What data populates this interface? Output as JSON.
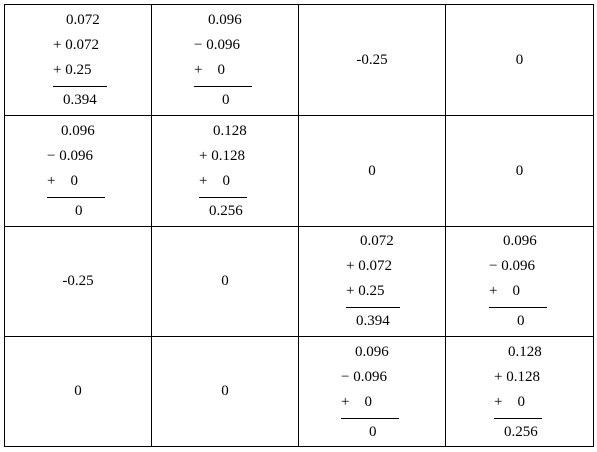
{
  "rows": [
    [
      {
        "type": "sum",
        "lines": [
          "0.072",
          "+ 0.072",
          "+ 0.25"
        ],
        "result": "0.394"
      },
      {
        "type": "sum",
        "lines": [
          "0.096",
          "− 0.096",
          "+    0"
        ],
        "result": "0"
      },
      {
        "type": "text",
        "text": "-0.25"
      },
      {
        "type": "text",
        "text": "0"
      }
    ],
    [
      {
        "type": "sum",
        "lines": [
          "0.096",
          "− 0.096",
          "+    0"
        ],
        "result": "0"
      },
      {
        "type": "sum",
        "lines": [
          "0.128",
          "+ 0.128",
          "+    0"
        ],
        "result": "0.256"
      },
      {
        "type": "text",
        "text": "0"
      },
      {
        "type": "text",
        "text": "0"
      }
    ],
    [
      {
        "type": "text",
        "text": "-0.25"
      },
      {
        "type": "text",
        "text": "0"
      },
      {
        "type": "sum",
        "lines": [
          "0.072",
          "+ 0.072",
          "+ 0.25"
        ],
        "result": "0.394"
      },
      {
        "type": "sum",
        "lines": [
          "0.096",
          "− 0.096",
          "+    0"
        ],
        "result": "0"
      }
    ],
    [
      {
        "type": "text",
        "text": "0"
      },
      {
        "type": "text",
        "text": "0"
      },
      {
        "type": "sum",
        "lines": [
          "0.096",
          "− 0.096",
          "+    0"
        ],
        "result": "0"
      },
      {
        "type": "sum",
        "lines": [
          "0.128",
          "+ 0.128",
          "+    0"
        ],
        "result": "0.256"
      }
    ]
  ]
}
